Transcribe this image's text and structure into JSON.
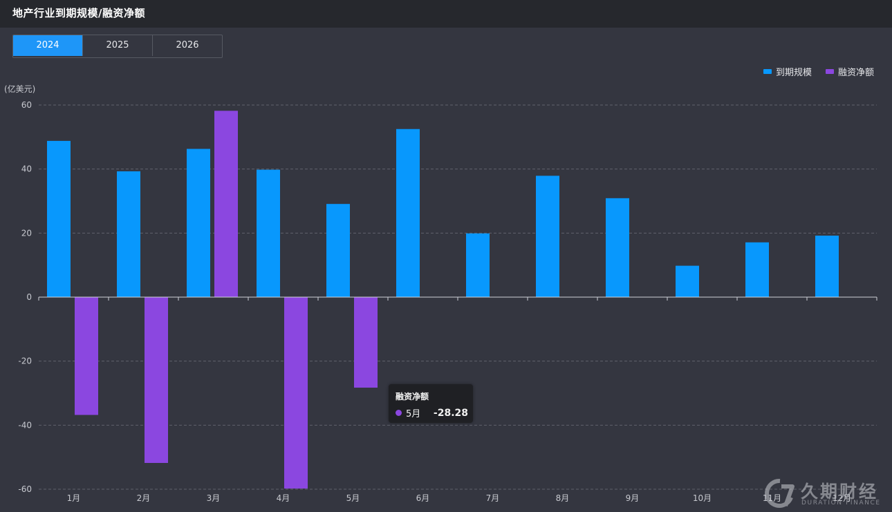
{
  "header": {
    "title": "地产行业到期规模/融资净额"
  },
  "tabs": [
    {
      "label": "2024",
      "active": true
    },
    {
      "label": "2025",
      "active": false
    },
    {
      "label": "2026",
      "active": false
    }
  ],
  "chart_data": {
    "type": "bar",
    "ylabel": "(亿美元)",
    "ylim": [
      -60,
      60
    ],
    "yticks": [
      60,
      40,
      20,
      0,
      -20,
      -40,
      -60
    ],
    "grid": true,
    "legend_position": "top-right",
    "categories": [
      "1月",
      "2月",
      "3月",
      "4月",
      "5月",
      "6月",
      "7月",
      "8月",
      "9月",
      "10月",
      "11月",
      "12月"
    ],
    "series": [
      {
        "name": "到期规模",
        "color": "#0898fd",
        "values": [
          48.8,
          39.3,
          46.3,
          39.8,
          29.1,
          52.5,
          19.9,
          37.9,
          30.9,
          9.8,
          17.1,
          19.2
        ]
      },
      {
        "name": "融资净额",
        "color": "#8b47e0",
        "values": [
          -36.8,
          -51.8,
          58.2,
          -59.8,
          -28.28,
          null,
          null,
          null,
          null,
          null,
          null,
          null
        ]
      }
    ]
  },
  "tooltip": {
    "title": "融资净额",
    "label": "5月",
    "value": "-28.28",
    "color": "#8b47e0"
  },
  "watermark": {
    "cn": "久期财经",
    "en": "DURATION FINANCE"
  }
}
